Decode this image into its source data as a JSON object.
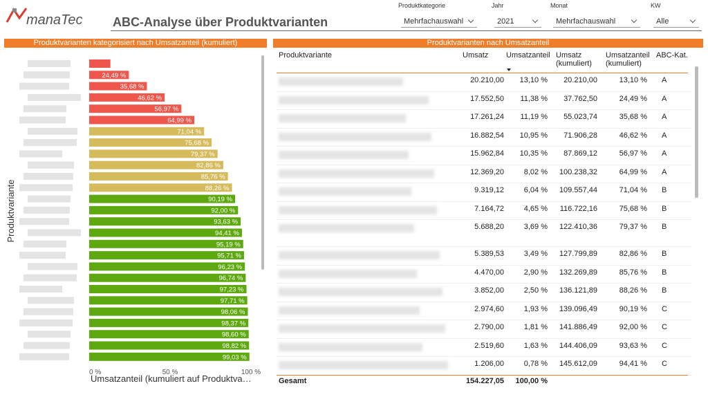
{
  "header": {
    "logo": "manaTec",
    "title": "ABC-Analyse über Produktvarianten"
  },
  "filters": [
    {
      "label": "Produktkategorie",
      "value": "Mehrfachauswahl"
    },
    {
      "label": "Jahr",
      "value": "2021"
    },
    {
      "label": "Monat",
      "value": "Mehrfachauswahl"
    },
    {
      "label": "KW",
      "value": "Alle"
    }
  ],
  "chart_data": {
    "type": "bar",
    "orientation": "horizontal",
    "title": "Produktvarianten kategorisiert nach Umsatzanteil (kumuliert)",
    "y_label": "Produktvariante",
    "x_label": "Umsatzanteil (kumuliert auf Produktva…",
    "values": [
      13.1,
      24.49,
      35.68,
      46.62,
      56.97,
      64.99,
      71.04,
      75.68,
      79.37,
      82.86,
      85.76,
      88.26,
      90.19,
      92.0,
      93.63,
      94.41,
      95.19,
      95.71,
      96.23,
      96.74,
      97.23,
      97.71,
      98.06,
      98.37,
      98.6,
      98.82,
      99.03
    ],
    "value_labels": [
      null,
      "24,49 %",
      "35,68 %",
      "46,62 %",
      "56,97 %",
      "64,99 %",
      "71,04 %",
      "75,68 %",
      "79,37 %",
      "82,86 %",
      "85,76 %",
      "88,26 %",
      "90,19 %",
      "92,00 %",
      "93,63 %",
      "94,41 %",
      "95,19 %",
      "95,71 %",
      "96,23 %",
      "96,74 %",
      "97,23 %",
      "97,71 %",
      "98,06 %",
      "98,37 %",
      "98,60 %",
      "98,82 %",
      "99,03 %"
    ],
    "colors": [
      "#f0574c",
      "#f0574c",
      "#f0574c",
      "#f0574c",
      "#f0574c",
      "#f0574c",
      "#d6bb5c",
      "#d6bb5c",
      "#d6bb5c",
      "#d6bb5c",
      "#d6bb5c",
      "#d6bb5c",
      "#5ea910",
      "#5ea910",
      "#5ea910",
      "#5ea910",
      "#5ea910",
      "#5ea910",
      "#5ea910",
      "#5ea910",
      "#5ea910",
      "#5ea910",
      "#5ea910",
      "#5ea910",
      "#5ea910",
      "#5ea910",
      "#5ea910"
    ],
    "xlim": [
      0,
      100
    ],
    "xticks": [
      {
        "value": 0,
        "label": "0 %"
      },
      {
        "value": 50,
        "label": "50 %"
      },
      {
        "value": 100,
        "label": "100 %"
      }
    ]
  },
  "table": {
    "title": "Produktvarianten nach Umsatzanteil",
    "columns": [
      "Produktvariante",
      "Umsatz",
      "Umsatzanteil",
      "Umsatz (kumuliert)",
      "Umsatzanteil (kumuliert)",
      "ABC-Kat."
    ],
    "rows": [
      [
        "20.210,00",
        "13,10 %",
        "20.210,00",
        "13,10 %",
        "A"
      ],
      [
        "17.552,50",
        "11,38 %",
        "37.762,50",
        "24,49 %",
        "A"
      ],
      [
        "17.261,24",
        "11,19 %",
        "55.023,74",
        "35,68 %",
        "A"
      ],
      [
        "16.882,54",
        "10,95 %",
        "71.906,28",
        "46,62 %",
        "A"
      ],
      [
        "15.962,84",
        "10,35 %",
        "87.869,12",
        "56,97 %",
        "A"
      ],
      [
        "12.369,20",
        "8,02 %",
        "100.238,32",
        "64,99 %",
        "A"
      ],
      [
        "9.319,12",
        "6,04 %",
        "109.557,44",
        "71,04 %",
        "B"
      ],
      [
        "7.164,72",
        "4,65 %",
        "116.722,16",
        "75,68 %",
        "B"
      ],
      [
        "5.688,20",
        "3,69 %",
        "122.410,36",
        "79,37 %",
        "B"
      ],
      [
        "5.389,53",
        "3,49 %",
        "127.799,89",
        "82,86 %",
        "B"
      ],
      [
        "4.470,00",
        "2,90 %",
        "132.269,89",
        "85,76 %",
        "B"
      ],
      [
        "3.852,00",
        "2,50 %",
        "136.121,89",
        "88,26 %",
        "B"
      ],
      [
        "2.974,60",
        "1,93 %",
        "139.096,49",
        "90,19 %",
        "C"
      ],
      [
        "2.790,00",
        "1,81 %",
        "141.886,49",
        "92,00 %",
        "C"
      ],
      [
        "2.519,60",
        "1,63 %",
        "144.406,09",
        "93,63 %",
        "C"
      ],
      [
        "1.206,00",
        "0,78 %",
        "145.612,09",
        "94,41 %",
        "C"
      ]
    ],
    "total": [
      "Gesamt",
      "154.227,05",
      "100,00 %"
    ]
  }
}
